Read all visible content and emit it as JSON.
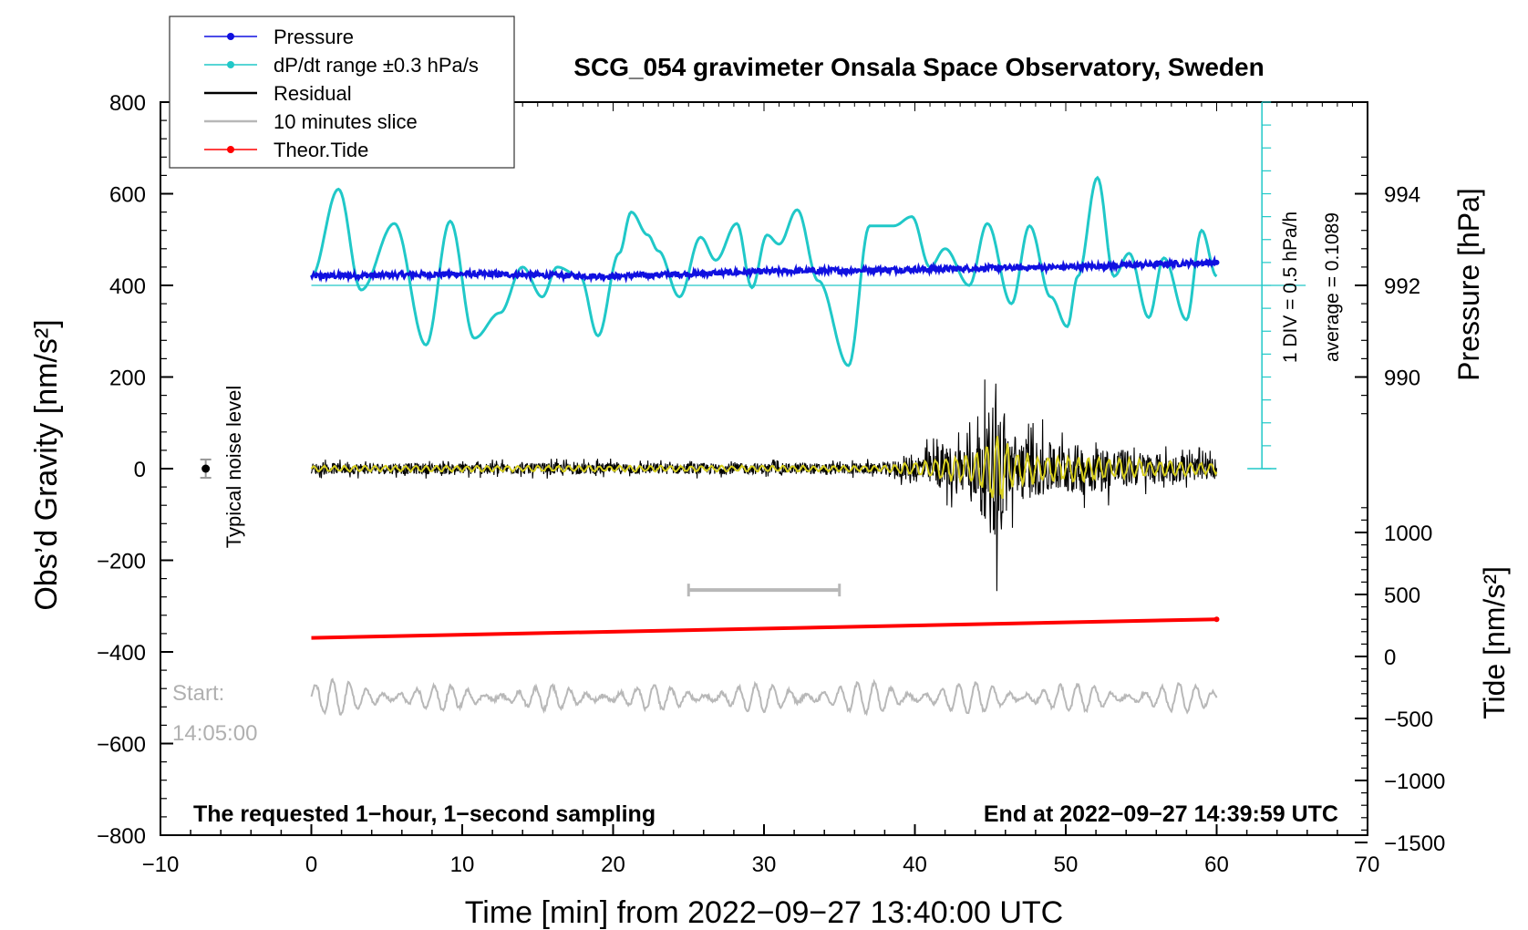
{
  "chart_data": {
    "type": "line",
    "title": "SCG_054 gravimeter Onsala Space Observatory, Sweden",
    "xlabel": "Time [min] from 2022−09−27 13:40:00 UTC",
    "ylabel_left": "Obs’d Gravity [nm/s²]",
    "ylabel_right_top": "Pressure [hPa]",
    "ylabel_right_bottom": "Tide [nm/s²]",
    "xlim": [
      -10,
      70
    ],
    "ylim": [
      -800,
      800
    ],
    "xticks": [
      "−10",
      "0",
      "10",
      "20",
      "30",
      "40",
      "50",
      "60",
      "70"
    ],
    "yticks": [
      "800",
      "600",
      "400",
      "200",
      "0",
      "−200",
      "−400",
      "−600",
      "−800"
    ],
    "pressure_ticks": [
      "994",
      "992",
      "990"
    ],
    "tide_ticks": [
      "1000",
      "500",
      "0",
      "−500",
      "−1000",
      "−1500"
    ],
    "legend": [
      {
        "label": "Pressure",
        "color": "#1010e0",
        "marker": true
      },
      {
        "label": "dP/dt range ±0.3 hPa/s",
        "color": "#20c8c8",
        "marker": true
      },
      {
        "label": "Residual",
        "color": "#000000",
        "marker": false
      },
      {
        "label": "10 minutes slice",
        "color": "#b8b8b8",
        "marker": false
      },
      {
        "label": "Theor.Tide",
        "color": "#ff0000",
        "marker": true
      }
    ],
    "annotations": {
      "noise": "Typical noise level",
      "start_label": "Start:",
      "start_time": "14:05:00",
      "bottom_left": "The requested 1−hour, 1−second sampling",
      "bottom_right": "End at 2022−09−27 14:39:59 UTC",
      "div_label": "1 DIV = 0.5 hPa/h",
      "average_label": "average = 0.1089"
    },
    "series": [
      {
        "name": "Pressure",
        "color": "#1010e0",
        "unit": "hPa",
        "x": [
          0,
          10,
          20,
          30,
          40,
          50,
          60
        ],
        "values": [
          992.2,
          992.25,
          992.2,
          992.3,
          992.35,
          992.4,
          992.5
        ]
      },
      {
        "name": "dP/dt range ±0.3 hPa/s",
        "color": "#20c8c8",
        "unit": "nm/s² axis",
        "x": [
          0,
          1.8,
          3.3,
          5.5,
          7.6,
          9.2,
          10.8,
          12.5,
          14,
          15.3,
          16.3,
          17.8,
          19,
          20.4,
          21.2,
          22.3,
          23,
          24.4,
          25.8,
          26.8,
          28.2,
          29.2,
          30.2,
          31,
          32.2,
          33.6,
          35.6,
          37,
          38.6,
          39.8,
          41,
          42,
          43.6,
          44.8,
          46.4,
          47.6,
          49,
          50.1,
          50.8,
          52.1,
          53.2,
          54.2,
          55.5,
          56.5,
          58,
          59,
          60
        ],
        "values": [
          420,
          610,
          390,
          535,
          270,
          540,
          285,
          340,
          440,
          375,
          440,
          420,
          290,
          470,
          560,
          510,
          475,
          375,
          505,
          455,
          535,
          395,
          510,
          490,
          565,
          410,
          225,
          530,
          530,
          550,
          440,
          480,
          400,
          535,
          360,
          530,
          375,
          310,
          420,
          635,
          420,
          470,
          330,
          460,
          325,
          520,
          420
        ]
      },
      {
        "name": "Residual",
        "color": "#000000",
        "unit": "nm/s²",
        "x": [
          0,
          15,
          20,
          38,
          41,
          44,
          45.5,
          46.3,
          48,
          52,
          56,
          60
        ],
        "values": [
          0,
          0,
          0,
          0,
          0,
          0,
          0,
          0,
          0,
          0,
          0,
          0
        ],
        "envelope": [
          22,
          22,
          22,
          22,
          70,
          120,
          300,
          150,
          110,
          90,
          60,
          40
        ]
      },
      {
        "name": "10 minutes slice",
        "color": "#b8b8b8",
        "unit": "nm/s² (offset −500)",
        "x": [
          0,
          10,
          20,
          30,
          40,
          50,
          60
        ],
        "values": [
          -500,
          -500,
          -500,
          -500,
          -500,
          -500,
          -500
        ],
        "amplitude": [
          40,
          25,
          25,
          30,
          35,
          30,
          30
        ]
      },
      {
        "name": "Theor.Tide",
        "color": "#ff0000",
        "unit": "nm/s² (tide axis)",
        "x": [
          0,
          60
        ],
        "values": [
          150,
          300
        ]
      }
    ],
    "slice_marker": {
      "x_start": 25,
      "x_end": 35,
      "y": -265
    },
    "noise_bar": {
      "x": -7,
      "y": 0,
      "half_range": 20
    },
    "dpdt_scale": {
      "x": 63,
      "y_min": 0,
      "y_max": 800,
      "average": 0.1089
    }
  }
}
